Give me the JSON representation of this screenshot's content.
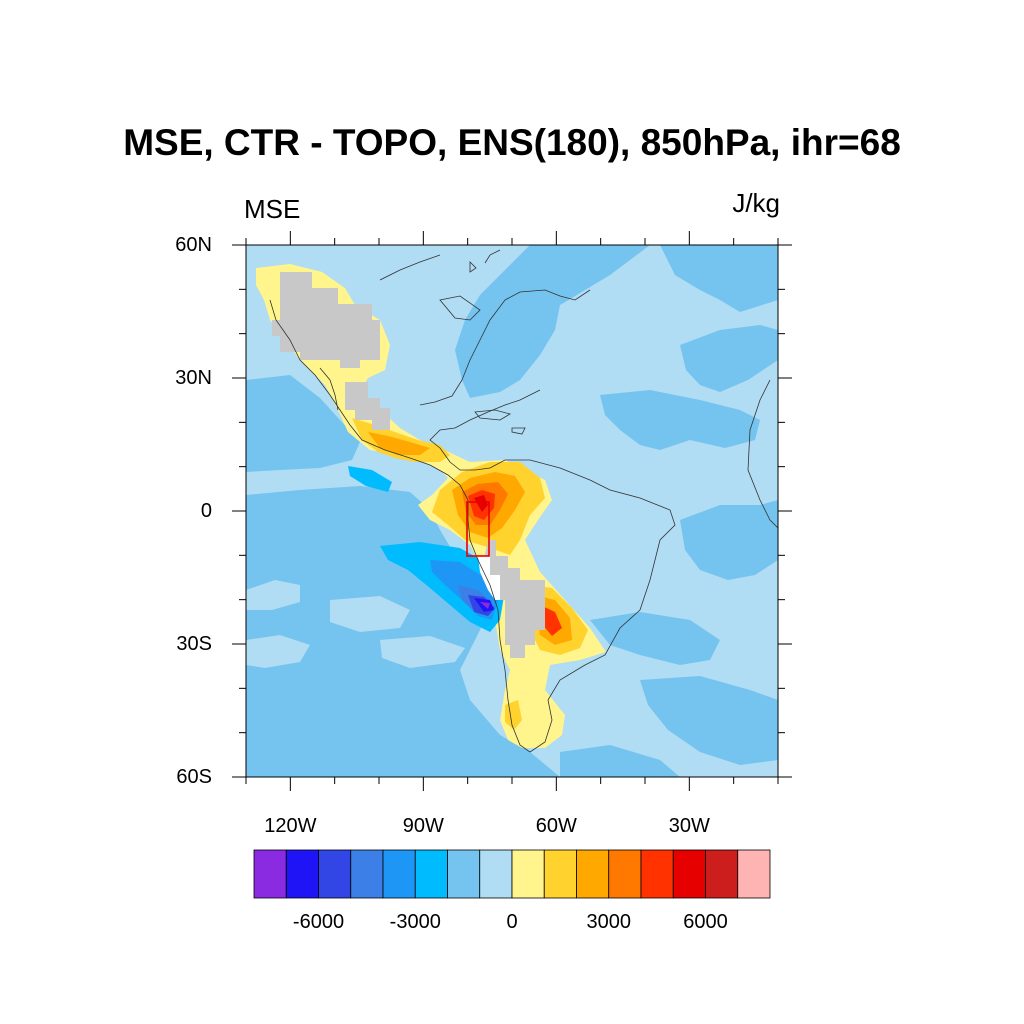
{
  "title": "MSE, CTR - TOPO, ENS(180), 850hPa, ihr=68",
  "left_label": "MSE",
  "right_label": "J/kg",
  "lat_ticks": [
    {
      "label": "60N",
      "value": 60
    },
    {
      "label": "30N",
      "value": 30
    },
    {
      "label": "0",
      "value": 0
    },
    {
      "label": "30S",
      "value": -30
    },
    {
      "label": "60S",
      "value": -60
    }
  ],
  "lon_ticks": [
    {
      "label": "120W",
      "value": -120
    },
    {
      "label": "90W",
      "value": -90
    },
    {
      "label": "60W",
      "value": -60
    },
    {
      "label": "30W",
      "value": -30
    }
  ],
  "extent": {
    "lon": [
      -130,
      -10
    ],
    "lat": [
      -60,
      60
    ]
  },
  "colorbar": {
    "colors": [
      "#8a2be2",
      "#1e14f5",
      "#3246e6",
      "#3c7fe6",
      "#1e96f5",
      "#00bcff",
      "#74c4ef",
      "#b0dcf4",
      "#fff58c",
      "#ffd22d",
      "#ffa800",
      "#ff7800",
      "#ff3200",
      "#e60000",
      "#cd1e1e",
      "#ffb4b4"
    ],
    "labels": [
      {
        "text": "-6000",
        "index": 2
      },
      {
        "text": "-3000",
        "index": 5
      },
      {
        "text": "0",
        "index": 8
      },
      {
        "text": "3000",
        "index": 11
      },
      {
        "text": "6000",
        "index": 14
      }
    ]
  },
  "colors": {
    "light_blue": "#b0dcf4",
    "medium_blue": "#74c4ef",
    "land_mask": "#c8c8c8",
    "box": "#e60000"
  }
}
